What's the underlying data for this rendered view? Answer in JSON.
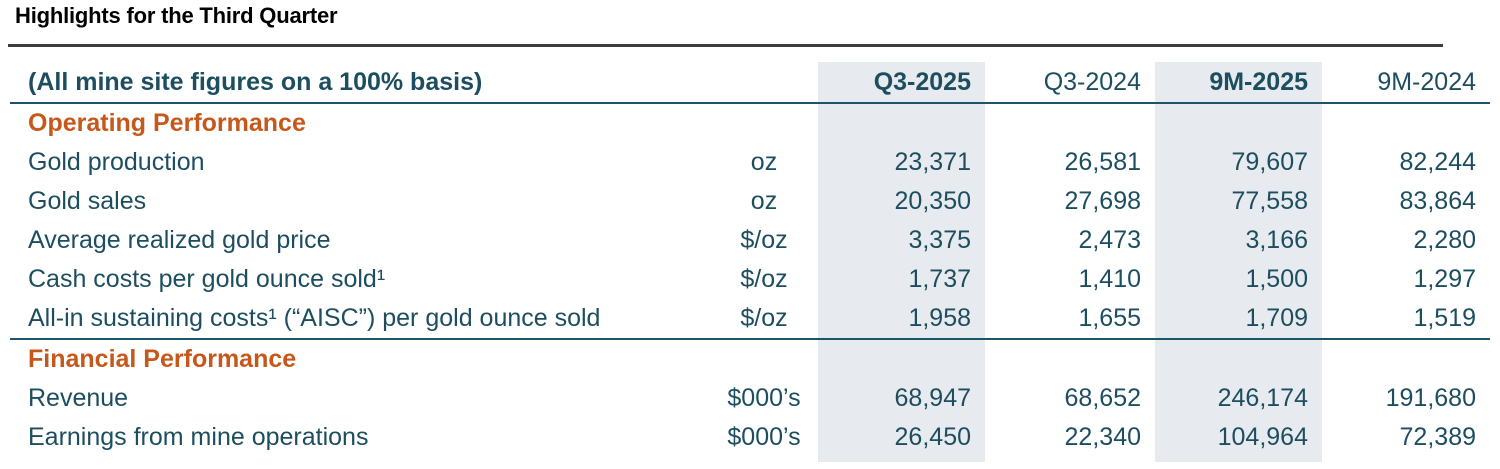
{
  "page_title": "Highlights for the Third Quarter",
  "colors": {
    "text_teal": "#1d4e60",
    "section_orange": "#c5581a",
    "column_highlight": "#e7eaee",
    "rule_dark": "#3d3d3d",
    "rule_teal": "#1d5568"
  },
  "table": {
    "header": {
      "label": "(All mine site figures on a 100% basis)",
      "columns": [
        {
          "label": "Q3-2025",
          "highlighted": true
        },
        {
          "label": "Q3-2024",
          "highlighted": false
        },
        {
          "label": "9M-2025",
          "highlighted": true
        },
        {
          "label": "9M-2024",
          "highlighted": false
        }
      ]
    },
    "sections": [
      {
        "title": "Operating Performance",
        "rows": [
          {
            "label": "Gold production",
            "unit": "oz",
            "values": [
              "23,371",
              "26,581",
              "79,607",
              "82,244"
            ]
          },
          {
            "label": "Gold sales",
            "unit": "oz",
            "values": [
              "20,350",
              "27,698",
              "77,558",
              "83,864"
            ]
          },
          {
            "label": "Average realized gold price",
            "unit": "$/oz",
            "values": [
              "3,375",
              "2,473",
              "3,166",
              "2,280"
            ]
          },
          {
            "label": "Cash costs per gold ounce sold¹",
            "unit": "$/oz",
            "values": [
              "1,737",
              "1,410",
              "1,500",
              "1,297"
            ]
          },
          {
            "label": "All-in sustaining costs¹ (“AISC”) per gold ounce sold",
            "unit": "$/oz",
            "values": [
              "1,958",
              "1,655",
              "1,709",
              "1,519"
            ]
          }
        ]
      },
      {
        "title": "Financial Performance",
        "rows": [
          {
            "label": "Revenue",
            "unit": "$000’s",
            "values": [
              "68,947",
              "68,652",
              "246,174",
              "191,680"
            ]
          },
          {
            "label": "Earnings from mine operations",
            "unit": "$000’s",
            "values": [
              "26,450",
              "22,340",
              "104,964",
              "72,389"
            ]
          }
        ]
      }
    ]
  }
}
